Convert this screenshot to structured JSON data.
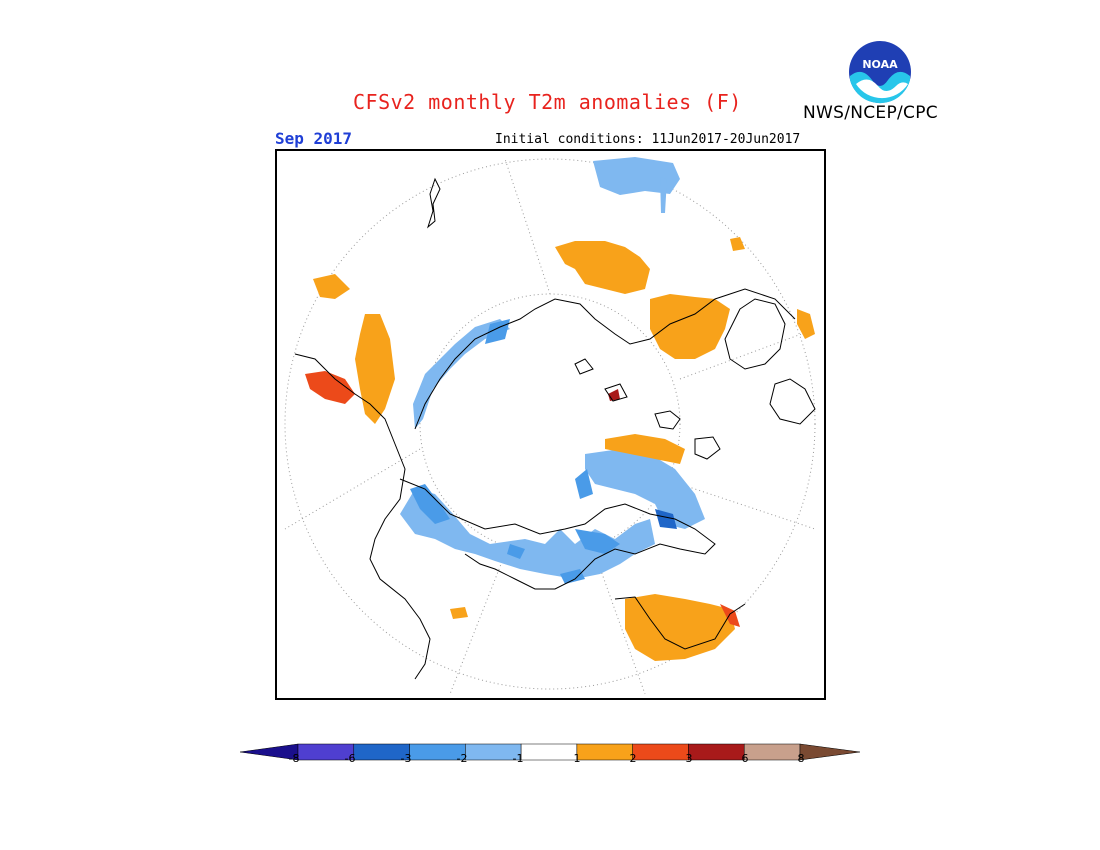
{
  "header": {
    "title": "CFSv2 monthly T2m anomalies (F)",
    "agency": "NWS/NCEP/CPC",
    "month": "Sep 2017",
    "initial_conditions": "Initial conditions: 11Jun2017-20Jun2017",
    "logo_text": "NOAA"
  },
  "map": {
    "projection": "north-polar-stereographic",
    "coastlines": true,
    "graticule": "dotted",
    "colors": {
      "cold_-2_-1": "#7fb8f0",
      "cold_-3_-2": "#4a9be8",
      "cold_-6_-3": "#1f66c8",
      "warm_1_2": "#f8a21a",
      "warm_2_3": "#ec4a1a",
      "warm_3_6": "#a81a1a"
    }
  },
  "colorbar": {
    "labels": [
      "-8",
      "-6",
      "-3",
      "-2",
      "-1",
      "1",
      "2",
      "3",
      "6",
      "8"
    ],
    "colors": [
      "#1a0f8c",
      "#4f3fd0",
      "#1f66c8",
      "#4a9be8",
      "#7fb8f0",
      "#ffffff",
      "#f8a21a",
      "#ec4a1a",
      "#a81a1a",
      "#c8a08c",
      "#7a4a32"
    ]
  }
}
